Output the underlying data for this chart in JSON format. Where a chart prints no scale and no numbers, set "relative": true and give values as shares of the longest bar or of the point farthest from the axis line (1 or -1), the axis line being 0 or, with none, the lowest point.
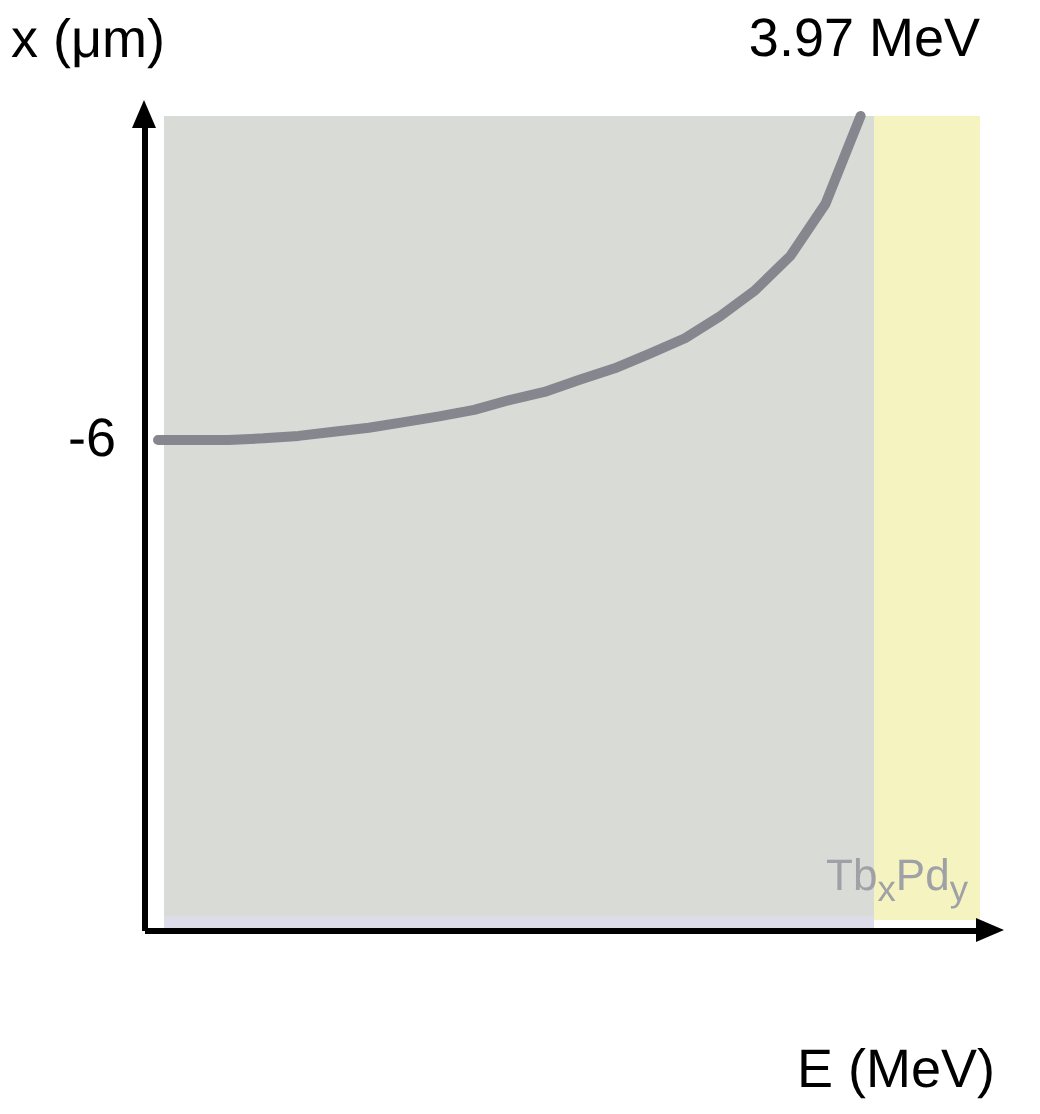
{
  "chart_data": {
    "type": "line",
    "xlabel": "E (MeV)",
    "ylabel": "x (μm)",
    "relative": true,
    "categories": [
      null,
      null,
      null,
      null,
      null,
      null,
      null,
      null,
      null,
      null,
      null,
      null,
      null,
      null,
      null,
      null,
      null,
      null,
      null,
      null,
      null,
      null,
      null,
      null
    ],
    "series": [
      {
        "color": "#85868e",
        "values": [
          0.602,
          0.602,
          0.602,
          0.604,
          0.607,
          0.612,
          0.617,
          0.624,
          0.631,
          0.639,
          0.651,
          0.661,
          0.676,
          0.69,
          0.708,
          0.727,
          0.754,
          0.786,
          0.828,
          0.892,
          1.0,
          null,
          null,
          null
        ]
      }
    ],
    "annotations": [
      "-6",
      {
        "text": "3.97 MeV",
        "y": 1.0
      },
      "Tb$_{x}$Pd$_{y}$"
    ]
  }
}
